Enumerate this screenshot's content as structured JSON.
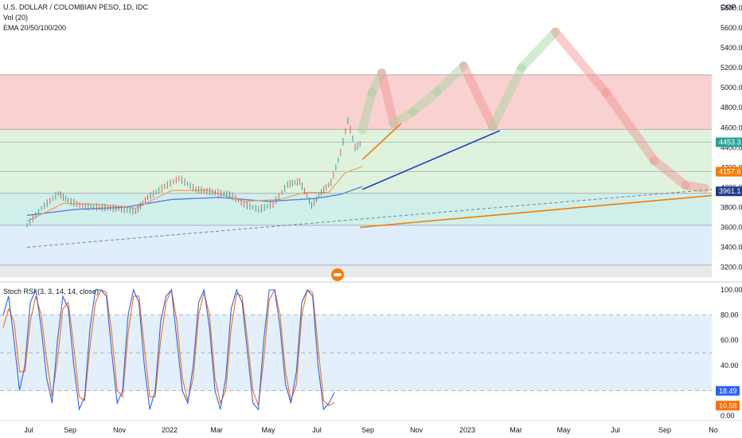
{
  "header": {
    "symbol_line": "U.S. DOLLAR / COLOMBIAN PESO, 1D, IDC",
    "volume_line": "Vol (20)",
    "ema_line": "EMA 20/50/100/200"
  },
  "colors": {
    "candle_up": "#26a69a",
    "candle_down": "#ef5350",
    "ema_fast": "#f59d5a",
    "ema_slow": "#5b7ee8",
    "rsi_k": "#2962ff",
    "rsi_d": "#ff6d00",
    "zone_red": "#f8c9c8",
    "zone_green": "#d8f0d8",
    "zone_teal": "#c8ece6",
    "zone_blue": "#dbeafb"
  },
  "chart_data": [
    {
      "type": "candlestick",
      "title": "U.S. DOLLAR / COLOMBIAN PESO, 1D, IDC",
      "currency_label": "COP",
      "y_ticks": [
        "5800.0",
        "5600.0",
        "5400.0",
        "5200.0",
        "5000.0",
        "4800.0",
        "4600.0",
        "4400.0",
        "4200.0",
        "4000.0",
        "3800.0",
        "3600.0",
        "3400.0",
        "3200.0"
      ],
      "x_ticks": [
        "Jul",
        "Sep",
        "Nov",
        "2022",
        "Mar",
        "May",
        "Jul",
        "Sep",
        "Nov",
        "2023",
        "Mar",
        "May",
        "Jul",
        "Sep",
        "No"
      ],
      "ylim": [
        3100,
        5900
      ],
      "price_tags": [
        {
          "label": "4453.3",
          "value": 4453.3,
          "color": "#26a69a"
        },
        {
          "label": "4157.6",
          "value": 4157.6,
          "color": "#f57c00"
        },
        {
          "label": "3961.1",
          "value": 3961.1,
          "color": "#1e3a8a"
        }
      ],
      "zones": [
        {
          "from": 4580,
          "to": 5130,
          "color": "red"
        },
        {
          "from": 3940,
          "to": 4580,
          "color": "green"
        },
        {
          "from": 3620,
          "to": 3940,
          "color": "teal"
        },
        {
          "from": 3220,
          "to": 3620,
          "color": "blue"
        },
        {
          "from": 3100,
          "to": 3220,
          "color": "gray"
        }
      ],
      "horizontal_levels": [
        5130,
        4580,
        4453.3,
        4157.6,
        3940,
        3620,
        3220
      ],
      "price_path": [
        {
          "t": 0.0,
          "p": 3620
        },
        {
          "t": 0.6,
          "p": 3790
        },
        {
          "t": 1.3,
          "p": 3940
        },
        {
          "t": 1.7,
          "p": 3870
        },
        {
          "t": 2.3,
          "p": 3810
        },
        {
          "t": 3.0,
          "p": 3800
        },
        {
          "t": 3.8,
          "p": 3790
        },
        {
          "t": 4.5,
          "p": 3760
        },
        {
          "t": 5.0,
          "p": 3900
        },
        {
          "t": 5.7,
          "p": 4010
        },
        {
          "t": 6.3,
          "p": 4090
        },
        {
          "t": 7.0,
          "p": 3980
        },
        {
          "t": 7.8,
          "p": 3950
        },
        {
          "t": 8.4,
          "p": 3930
        },
        {
          "t": 9.0,
          "p": 3830
        },
        {
          "t": 9.6,
          "p": 3780
        },
        {
          "t": 10.2,
          "p": 3830
        },
        {
          "t": 10.8,
          "p": 4030
        },
        {
          "t": 11.3,
          "p": 4060
        },
        {
          "t": 11.8,
          "p": 3820
        },
        {
          "t": 12.2,
          "p": 3950
        },
        {
          "t": 12.6,
          "p": 4050
        },
        {
          "t": 13.0,
          "p": 4350
        },
        {
          "t": 13.3,
          "p": 4670
        },
        {
          "t": 13.6,
          "p": 4400
        },
        {
          "t": 13.9,
          "p": 4453
        }
      ],
      "ema_fast": [
        {
          "t": 0.0,
          "p": 3660
        },
        {
          "t": 1.5,
          "p": 3840
        },
        {
          "t": 3.0,
          "p": 3830
        },
        {
          "t": 4.5,
          "p": 3790
        },
        {
          "t": 6.0,
          "p": 3970
        },
        {
          "t": 7.5,
          "p": 3970
        },
        {
          "t": 9.0,
          "p": 3860
        },
        {
          "t": 10.5,
          "p": 3880
        },
        {
          "t": 11.5,
          "p": 3950
        },
        {
          "t": 12.5,
          "p": 3950
        },
        {
          "t": 13.2,
          "p": 4150
        },
        {
          "t": 13.9,
          "p": 4210
        }
      ],
      "ema_slow": [
        {
          "t": 0.0,
          "p": 3720
        },
        {
          "t": 2.0,
          "p": 3780
        },
        {
          "t": 4.0,
          "p": 3800
        },
        {
          "t": 6.0,
          "p": 3880
        },
        {
          "t": 8.0,
          "p": 3900
        },
        {
          "t": 10.0,
          "p": 3860
        },
        {
          "t": 12.0,
          "p": 3890
        },
        {
          "t": 13.0,
          "p": 3930
        },
        {
          "t": 13.9,
          "p": 4010
        }
      ],
      "projection_path": [
        {
          "t": 13.9,
          "p": 4580
        },
        {
          "t": 14.3,
          "p": 4950
        },
        {
          "t": 14.7,
          "p": 5150
        },
        {
          "t": 15.2,
          "p": 4640
        },
        {
          "t": 16.0,
          "p": 4760
        },
        {
          "t": 17.0,
          "p": 4960
        },
        {
          "t": 18.1,
          "p": 5220
        },
        {
          "t": 19.3,
          "p": 4610
        },
        {
          "t": 20.5,
          "p": 5200
        },
        {
          "t": 21.9,
          "p": 5560
        },
        {
          "t": 24.0,
          "p": 4950
        },
        {
          "t": 26.0,
          "p": 4270
        },
        {
          "t": 27.3,
          "p": 4020
        },
        {
          "t": 28.1,
          "p": 3990
        }
      ],
      "trendlines": [
        {
          "color": "orange",
          "from": {
            "t": 13.9,
            "p": 4280
          },
          "to": {
            "t": 15.5,
            "p": 4640
          }
        },
        {
          "color": "blue",
          "from": {
            "t": 13.9,
            "p": 3980
          },
          "to": {
            "t": 19.6,
            "p": 4570
          }
        },
        {
          "color": "orange",
          "from": {
            "t": 13.8,
            "p": 3600
          },
          "to": {
            "t": 28.9,
            "p": 3930
          }
        },
        {
          "color": "gray-dashed",
          "from": {
            "t": 0.0,
            "p": 3400
          },
          "to": {
            "t": 28.9,
            "p": 3990
          }
        }
      ]
    },
    {
      "type": "line",
      "title": "Stoch RSI (3, 3, 14, 14, close)",
      "y_ticks": [
        "100.00",
        "80.00",
        "60.00",
        "40.00",
        "20.00",
        "0.00"
      ],
      "ylim": [
        0,
        100
      ],
      "bands": [
        20,
        50,
        80
      ],
      "value_tags": [
        {
          "label": "18.49",
          "value": 18.49,
          "color": "#2962ff"
        },
        {
          "label": "10.58",
          "value": 10.58,
          "color": "#ff6d00"
        }
      ],
      "series": [
        {
          "key": "k",
          "values": [
            80,
            95,
            60,
            20,
            40,
            90,
            100,
            70,
            30,
            10,
            60,
            95,
            85,
            40,
            5,
            15,
            70,
            100,
            100,
            95,
            50,
            10,
            20,
            80,
            100,
            90,
            40,
            5,
            20,
            75,
            95,
            100,
            60,
            20,
            10,
            40,
            90,
            100,
            70,
            20,
            5,
            30,
            85,
            100,
            90,
            50,
            10,
            5,
            60,
            100,
            100,
            70,
            25,
            10,
            35,
            90,
            100,
            95,
            40,
            5,
            10,
            18.49
          ]
        },
        {
          "key": "d",
          "values": [
            70,
            85,
            75,
            35,
            35,
            75,
            95,
            80,
            45,
            15,
            45,
            85,
            90,
            55,
            15,
            12,
            55,
            90,
            100,
            98,
            65,
            20,
            15,
            65,
            95,
            95,
            55,
            15,
            15,
            60,
            90,
            100,
            75,
            30,
            12,
            30,
            80,
            98,
            80,
            30,
            10,
            20,
            70,
            97,
            95,
            60,
            20,
            8,
            45,
            92,
            100,
            80,
            35,
            12,
            25,
            80,
            100,
            98,
            55,
            12,
            8,
            10.58
          ]
        }
      ]
    }
  ]
}
